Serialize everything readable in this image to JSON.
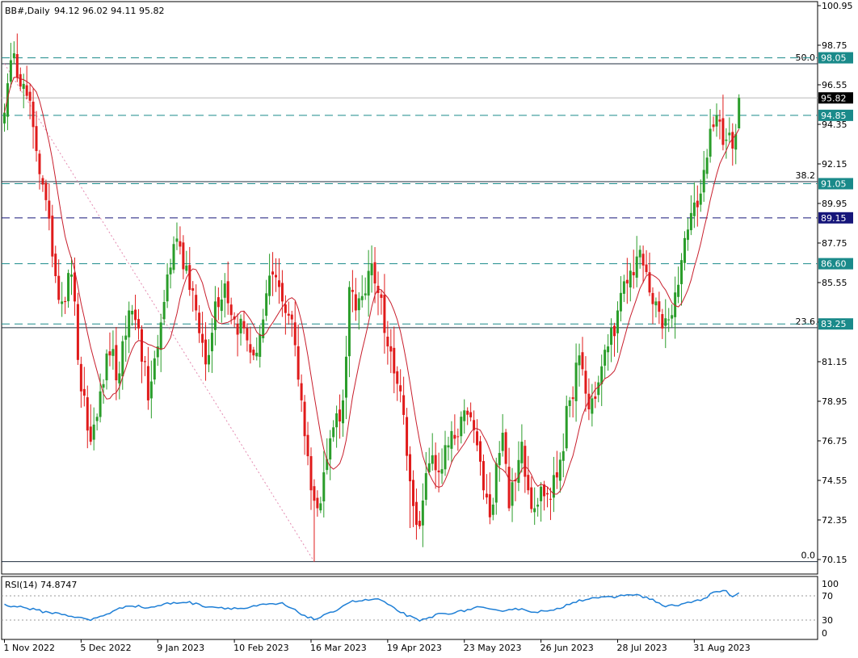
{
  "chart_data": {
    "type": "candlestick",
    "header": {
      "symbol": "BB#,Daily",
      "ohlc": "94.12 96.02 94.11 95.82"
    },
    "colors": {
      "up": "#2a9d2a",
      "down": "#e01b1b",
      "ma": "#c81e2c",
      "fib": "#1f2d3d",
      "teal": "#1a8a8a",
      "navy": "#16167a",
      "price_label_bg": "#000000",
      "rsi": "#1e7fd6"
    },
    "price_axis": {
      "min": 70.15,
      "max": 100.95,
      "ticks": [
        "100.95",
        "98.75",
        "96.55",
        "94.35",
        "92.15",
        "89.95",
        "87.75",
        "85.55",
        "83.35",
        "81.15",
        "78.95",
        "76.75",
        "74.55",
        "72.35",
        "70.15"
      ]
    },
    "x_axis_labels": [
      {
        "text": "1 Nov 2022",
        "index": 0
      },
      {
        "text": "5 Dec 2022",
        "index": 24
      },
      {
        "text": "9 Jan 2023",
        "index": 48
      },
      {
        "text": "10 Feb 2023",
        "index": 72
      },
      {
        "text": "16 Mar 2023",
        "index": 96
      },
      {
        "text": "19 Apr 2023",
        "index": 120
      },
      {
        "text": "23 May 2023",
        "index": 144
      },
      {
        "text": "26 Jun 2023",
        "index": 168
      },
      {
        "text": "28 Jul 2023",
        "index": 192
      },
      {
        "text": "31 Aug 2023",
        "index": 216
      }
    ],
    "fib_levels": [
      {
        "ratio": "50.0",
        "price": 97.72
      },
      {
        "ratio": "38.2",
        "price": 91.16
      },
      {
        "ratio": "23.6",
        "price": 83.04
      },
      {
        "ratio": "0.0",
        "price": 70.03
      }
    ],
    "fib_trend": {
      "from": {
        "index": 0,
        "price": 97.72
      },
      "to": {
        "index": 97,
        "price": 70.03
      }
    },
    "horizontal_levels": [
      {
        "label": "98.05",
        "price": 98.05,
        "color": "teal",
        "style": "dashed"
      },
      {
        "label": "94.85",
        "price": 94.85,
        "color": "teal",
        "style": "dashed"
      },
      {
        "label": "91.05",
        "price": 91.05,
        "color": "teal",
        "style": "dashed"
      },
      {
        "label": "89.15",
        "price": 89.15,
        "color": "navy",
        "style": "dashed"
      },
      {
        "label": "86.60",
        "price": 86.6,
        "color": "teal",
        "style": "dashed"
      },
      {
        "label": "83.25",
        "price": 83.25,
        "color": "teal",
        "style": "dashed"
      }
    ],
    "current_price": {
      "label": "95.82",
      "price": 95.82
    },
    "anchors": [
      [
        0,
        95.0
      ],
      [
        3,
        98.3
      ],
      [
        6,
        96.6
      ],
      [
        9,
        94.2
      ],
      [
        12,
        91.0
      ],
      [
        15,
        87.0
      ],
      [
        18,
        84.5
      ],
      [
        21,
        86.0
      ],
      [
        24,
        79.5
      ],
      [
        27,
        76.7
      ],
      [
        30,
        79.5
      ],
      [
        33,
        81.5
      ],
      [
        36,
        80.5
      ],
      [
        39,
        84.0
      ],
      [
        42,
        83.0
      ],
      [
        45,
        79.0
      ],
      [
        48,
        82.0
      ],
      [
        51,
        86.0
      ],
      [
        54,
        88.0
      ],
      [
        57,
        86.5
      ],
      [
        60,
        84.0
      ],
      [
        63,
        81.0
      ],
      [
        66,
        84.5
      ],
      [
        69,
        85.5
      ],
      [
        72,
        83.5
      ],
      [
        75,
        83.0
      ],
      [
        78,
        81.5
      ],
      [
        81,
        83.5
      ],
      [
        84,
        86.0
      ],
      [
        87,
        84.5
      ],
      [
        90,
        83.5
      ],
      [
        93,
        79.0
      ],
      [
        96,
        74.0
      ],
      [
        98,
        73.0
      ],
      [
        100,
        75.0
      ],
      [
        103,
        77.5
      ],
      [
        106,
        79.0
      ],
      [
        108,
        85.3
      ],
      [
        110,
        84.0
      ],
      [
        112,
        84.8
      ],
      [
        114,
        86.2
      ],
      [
        116,
        85.5
      ],
      [
        118,
        84.7
      ],
      [
        120,
        82.0
      ],
      [
        122,
        80.5
      ],
      [
        124,
        79.5
      ],
      [
        127,
        74.5
      ],
      [
        130,
        72.0
      ],
      [
        133,
        75.5
      ],
      [
        136,
        75.0
      ],
      [
        139,
        76.5
      ],
      [
        142,
        77.0
      ],
      [
        145,
        78.2
      ],
      [
        148,
        76.5
      ],
      [
        150,
        74.0
      ],
      [
        152,
        72.5
      ],
      [
        154,
        75.5
      ],
      [
        156,
        77.2
      ],
      [
        158,
        73.0
      ],
      [
        160,
        74.5
      ],
      [
        162,
        76.7
      ],
      [
        164,
        74.0
      ],
      [
        166,
        73.0
      ],
      [
        168,
        74.2
      ],
      [
        171,
        73.5
      ],
      [
        174,
        75.7
      ],
      [
        177,
        79.0
      ],
      [
        180,
        81.5
      ],
      [
        183,
        78.5
      ],
      [
        186,
        80.0
      ],
      [
        189,
        82.0
      ],
      [
        192,
        84.0
      ],
      [
        195,
        85.5
      ],
      [
        198,
        87.0
      ],
      [
        200,
        86.5
      ],
      [
        202,
        85.0
      ],
      [
        204,
        84.5
      ],
      [
        206,
        83.0
      ],
      [
        208,
        83.5
      ],
      [
        210,
        85.0
      ],
      [
        212,
        86.8
      ],
      [
        214,
        88.5
      ],
      [
        216,
        90.0
      ],
      [
        218,
        90.5
      ],
      [
        220,
        92.5
      ],
      [
        222,
        94.2
      ],
      [
        224,
        94.5
      ],
      [
        226,
        93.5
      ],
      [
        228,
        93.0
      ],
      [
        229,
        93.8
      ],
      [
        230,
        95.82
      ]
    ],
    "ma_period": 10,
    "rsi": {
      "label": "RSI(14) 74.8747",
      "axis_labels": [
        "100",
        "70",
        "30",
        "0"
      ],
      "levels": [
        70,
        30
      ],
      "points": [
        [
          0,
          55
        ],
        [
          6,
          51
        ],
        [
          12,
          44
        ],
        [
          18,
          40
        ],
        [
          24,
          33
        ],
        [
          27,
          30
        ],
        [
          33,
          42
        ],
        [
          39,
          55
        ],
        [
          45,
          50
        ],
        [
          51,
          57
        ],
        [
          57,
          60
        ],
        [
          63,
          53
        ],
        [
          69,
          50
        ],
        [
          75,
          49
        ],
        [
          81,
          55
        ],
        [
          87,
          57
        ],
        [
          93,
          40
        ],
        [
          97,
          31
        ],
        [
          102,
          41
        ],
        [
          108,
          60
        ],
        [
          114,
          63
        ],
        [
          117,
          65
        ],
        [
          121,
          52
        ],
        [
          126,
          38
        ],
        [
          130,
          28
        ],
        [
          136,
          40
        ],
        [
          142,
          43
        ],
        [
          148,
          51
        ],
        [
          154,
          45
        ],
        [
          160,
          49
        ],
        [
          166,
          44
        ],
        [
          172,
          45
        ],
        [
          178,
          60
        ],
        [
          184,
          67
        ],
        [
          190,
          67
        ],
        [
          196,
          73
        ],
        [
          202,
          66
        ],
        [
          207,
          52
        ],
        [
          212,
          56
        ],
        [
          218,
          63
        ],
        [
          222,
          75
        ],
        [
          226,
          78
        ],
        [
          228,
          68
        ],
        [
          230,
          74.87
        ]
      ]
    }
  }
}
